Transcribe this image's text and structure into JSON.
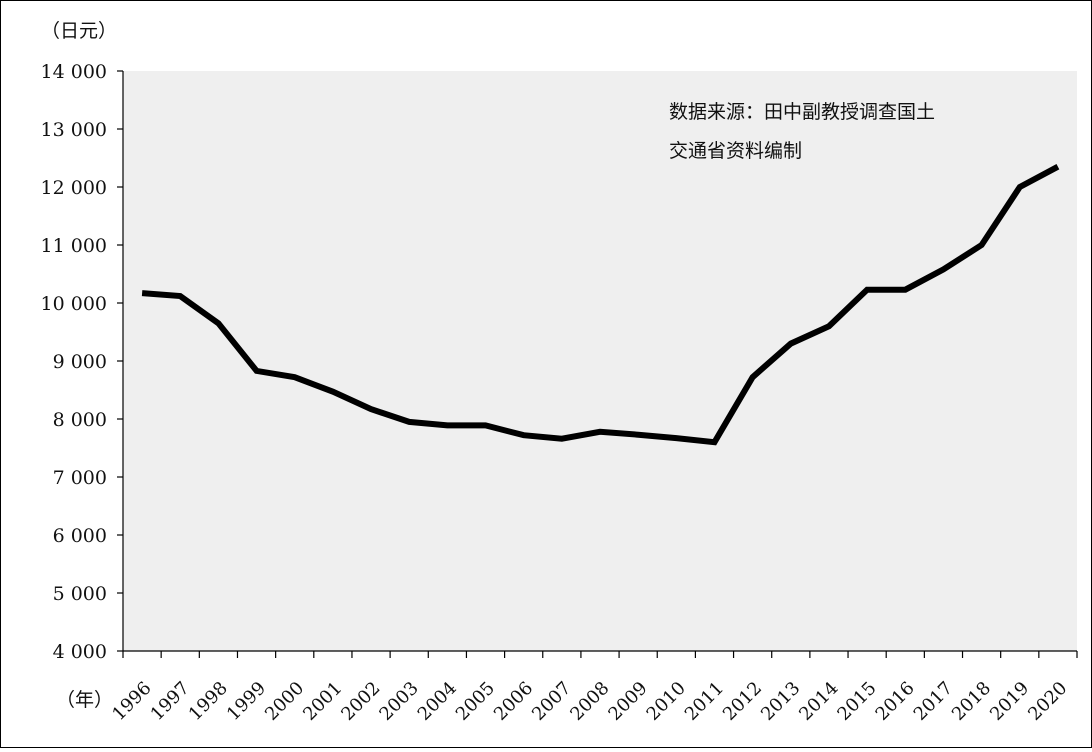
{
  "chart_data": {
    "type": "line",
    "y_unit_label": "（日元）",
    "x_unit_label": "（年）",
    "annotation_lines": [
      "数据来源：田中副教授调查国土",
      "交通省资料编制"
    ],
    "ylim": [
      4000,
      14000
    ],
    "y_ticks": [
      {
        "value": 4000,
        "label": "4 000"
      },
      {
        "value": 5000,
        "label": "5 000"
      },
      {
        "value": 6000,
        "label": "6 000"
      },
      {
        "value": 7000,
        "label": "7 000"
      },
      {
        "value": 8000,
        "label": "8 000"
      },
      {
        "value": 9000,
        "label": "9 000"
      },
      {
        "value": 10000,
        "label": "10 000"
      },
      {
        "value": 11000,
        "label": "11 000"
      },
      {
        "value": 12000,
        "label": "12 000"
      },
      {
        "value": 13000,
        "label": "13 000"
      },
      {
        "value": 14000,
        "label": "14 000"
      }
    ],
    "categories": [
      "1996",
      "1997",
      "1998",
      "1999",
      "2000",
      "2001",
      "2002",
      "2003",
      "2004",
      "2005",
      "2006",
      "2007",
      "2008",
      "2009",
      "2010",
      "2011",
      "2012",
      "2013",
      "2014",
      "2015",
      "2016",
      "2017",
      "2018",
      "2019",
      "2020"
    ],
    "values": [
      10170,
      10120,
      9650,
      8830,
      8720,
      8470,
      8170,
      7950,
      7890,
      7890,
      7720,
      7660,
      7780,
      7730,
      7670,
      7600,
      8720,
      9300,
      9600,
      10230,
      10230,
      10580,
      11000,
      12000,
      12350
    ],
    "grid": false,
    "legend": "none",
    "colors": {
      "line": "#000000",
      "plot_bg": "#efefef"
    }
  }
}
